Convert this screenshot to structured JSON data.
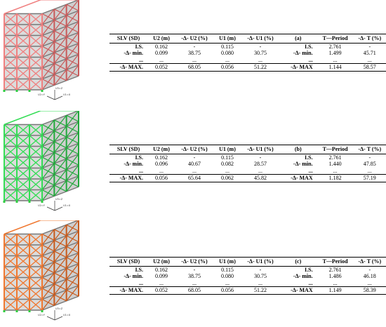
{
  "panels": [
    {
      "color": "#f08080",
      "color_dark": "#c85a5a",
      "label": "(a)",
      "disp_headers": [
        "SLV (SD)",
        "U2 (m)",
        "-Δ- U2 (%)",
        "U1 (m)",
        "-Δ- U1 (%)"
      ],
      "disp_rows": [
        [
          "I.S.",
          "0.162",
          "-",
          "0.115",
          "-"
        ],
        [
          "-Δ- min.",
          "0.099",
          "38.75",
          "0.080",
          "30.75"
        ],
        [
          "...",
          "...",
          "...",
          "...",
          "..."
        ],
        [
          "-Δ- MAX.",
          "0.052",
          "68.05",
          "0.056",
          "51.22"
        ]
      ],
      "period_headers": [
        "(a)",
        "T—Period",
        "-Δ- T (%)"
      ],
      "period_rows": [
        [
          "I.S.",
          "2.761",
          "-"
        ],
        [
          "-Δ- min.",
          "1.499",
          "45.71"
        ],
        [
          "...",
          "...",
          "..."
        ],
        [
          "-Δ- MAX",
          "1.144",
          "58.57"
        ]
      ]
    },
    {
      "color": "#33dd55",
      "color_dark": "#22a83c",
      "label": "(b)",
      "disp_headers": [
        "SLV (SD)",
        "U2 (m)",
        "-Δ- U2 (%)",
        "U1 (m)",
        "-Δ- U1 (%)"
      ],
      "disp_rows": [
        [
          "I.S.",
          "0.162",
          "-",
          "0.115",
          "-"
        ],
        [
          "-Δ- min.",
          "0.096",
          "40.67",
          "0.082",
          "28.57"
        ],
        [
          "...",
          "...",
          "...",
          "...",
          "..."
        ],
        [
          "-Δ- MAX.",
          "0.056",
          "65.64",
          "0.062",
          "45.82"
        ]
      ],
      "period_headers": [
        "(b)",
        "T—Period",
        "-Δ- T (%)"
      ],
      "period_rows": [
        [
          "I.S.",
          "2.761",
          "-"
        ],
        [
          "-Δ- min.",
          "1.440",
          "47.85"
        ],
        [
          "...",
          "...",
          "..."
        ],
        [
          "-Δ- MAX",
          "1.182",
          "57.19"
        ]
      ]
    },
    {
      "color": "#f07830",
      "color_dark": "#c85a1c",
      "label": "(c)",
      "disp_headers": [
        "SLV (SD)",
        "U2 (m)",
        "-Δ- U2 (%)",
        "U1 (m)",
        "-Δ- U1 (%)"
      ],
      "disp_rows": [
        [
          "I.S.",
          "0.162",
          "-",
          "0.115",
          "-"
        ],
        [
          "-Δ- min.",
          "0.099",
          "38.75",
          "0.080",
          "30.75"
        ],
        [
          "...",
          "...",
          "...",
          "...",
          "..."
        ],
        [
          "-Δ- MAX.",
          "0.052",
          "68.05",
          "0.056",
          "51.22"
        ]
      ],
      "period_headers": [
        "(c)",
        "T—Period",
        "-Δ- T (%)"
      ],
      "period_rows": [
        [
          "I.S.",
          "2.761",
          "-"
        ],
        [
          "-Δ- min.",
          "1.486",
          "46.18"
        ],
        [
          "...",
          "...",
          "..."
        ],
        [
          "-Δ- MAX",
          "1.149",
          "58.39"
        ]
      ]
    }
  ],
  "axis_labels": [
    "U3=Z",
    "U2=Y",
    "U1=X"
  ]
}
